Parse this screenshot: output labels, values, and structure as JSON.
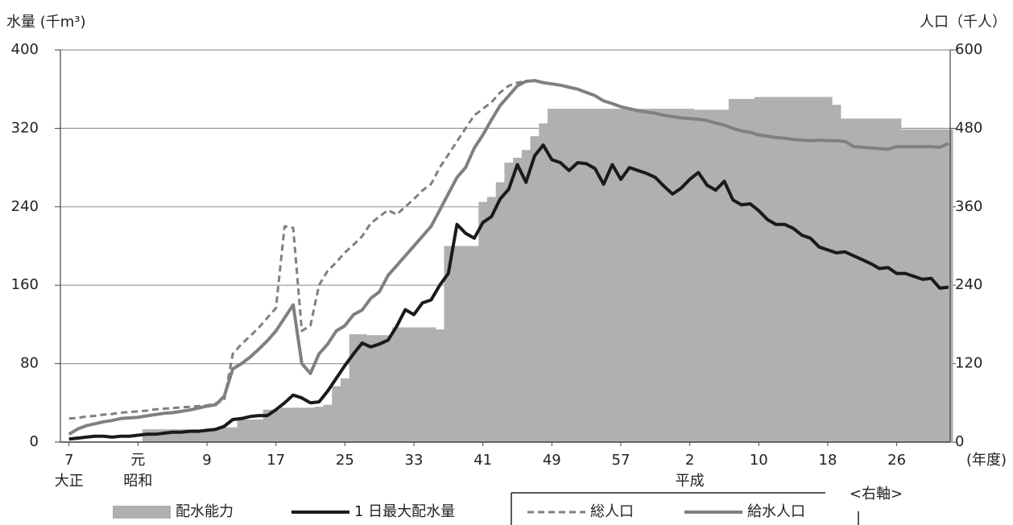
{
  "chart_data": {
    "type": "combo",
    "y_label": "水量 (千m³)",
    "y2_label": "人口（千人）",
    "x_label": "(年度)",
    "x_era_labels": [
      {
        "value": 1918,
        "label": "大正"
      },
      {
        "value": 1926,
        "label": "昭和"
      },
      {
        "value": 1990,
        "label": "平成"
      }
    ],
    "legend_note": "<右軸>",
    "xlim": [
      1917,
      2020.2
    ],
    "xticks": [
      {
        "value": 1918,
        "label": "7"
      },
      {
        "value": 1926,
        "label": "元"
      },
      {
        "value": 1934,
        "label": "9"
      },
      {
        "value": 1942,
        "label": "17"
      },
      {
        "value": 1950,
        "label": "25"
      },
      {
        "value": 1958,
        "label": "33"
      },
      {
        "value": 1966,
        "label": "41"
      },
      {
        "value": 1974,
        "label": "49"
      },
      {
        "value": 1982,
        "label": "57"
      },
      {
        "value": 1990,
        "label": "2"
      },
      {
        "value": 1998,
        "label": "10"
      },
      {
        "value": 2006,
        "label": "18"
      },
      {
        "value": 2014,
        "label": "26"
      }
    ],
    "ylim": [
      0,
      400
    ],
    "yticks": [
      0,
      80,
      160,
      240,
      320,
      400
    ],
    "y2lim": [
      0,
      600
    ],
    "y2ticks": [
      0,
      120,
      240,
      360,
      480,
      600
    ],
    "grid": true,
    "x": [
      1918,
      1919,
      1920,
      1921,
      1922,
      1923,
      1924,
      1925,
      1926,
      1927,
      1928,
      1929,
      1930,
      1931,
      1932,
      1933,
      1934,
      1935,
      1936,
      1937,
      1938,
      1939,
      1940,
      1941,
      1942,
      1943,
      1944,
      1945,
      1946,
      1947,
      1948,
      1949,
      1950,
      1951,
      1952,
      1953,
      1954,
      1955,
      1956,
      1957,
      1958,
      1959,
      1960,
      1961,
      1962,
      1963,
      1964,
      1965,
      1966,
      1967,
      1968,
      1969,
      1970,
      1971,
      1972,
      1973,
      1974,
      1975,
      1976,
      1977,
      1978,
      1979,
      1980,
      1981,
      1982,
      1983,
      1984,
      1985,
      1986,
      1987,
      1988,
      1989,
      1990,
      1991,
      1992,
      1993,
      1994,
      1995,
      1996,
      1997,
      1998,
      1999,
      2000,
      2001,
      2002,
      2003,
      2004,
      2005,
      2006,
      2007,
      2008,
      2009,
      2010,
      2011,
      2012,
      2013,
      2014,
      2015,
      2016,
      2017,
      2018,
      2019,
      2020
    ],
    "series": [
      {
        "name": "配水能力",
        "kind": "bar",
        "axis": "y",
        "color": "#b0b0b0",
        "values": [
          0,
          0,
          0,
          0,
          0,
          0,
          0,
          0,
          0,
          13,
          13,
          13,
          13,
          13,
          13,
          13,
          13,
          13,
          15,
          15,
          23,
          23,
          23,
          33,
          33,
          35,
          35,
          35,
          35,
          36,
          38,
          57,
          65,
          110,
          110,
          109,
          109,
          109,
          117,
          117,
          117,
          117,
          117,
          115,
          200,
          200,
          200,
          200,
          245,
          250,
          265,
          285,
          290,
          298,
          312,
          325,
          340,
          340,
          340,
          340,
          340,
          340,
          340,
          340,
          340,
          340,
          340,
          340,
          340,
          340,
          340,
          340,
          340,
          339,
          339,
          339,
          339,
          350,
          350,
          350,
          352,
          352,
          352,
          352,
          352,
          352,
          352,
          352,
          352,
          344,
          330,
          330,
          330,
          330,
          330,
          330,
          330,
          319,
          319,
          319,
          319,
          319,
          319
        ]
      },
      {
        "name": "1 日最大配水量",
        "kind": "line",
        "axis": "y",
        "color": "#1a1a1a",
        "dash": false,
        "values": [
          3,
          4,
          5,
          6,
          6,
          5,
          6,
          6,
          7,
          8,
          8,
          9,
          10,
          10,
          11,
          11,
          12,
          13,
          16,
          23,
          24,
          26,
          27,
          27,
          33,
          40,
          48,
          45,
          40,
          41,
          52,
          65,
          78,
          90,
          101,
          97,
          100,
          104,
          118,
          135,
          130,
          142,
          145,
          160,
          172,
          222,
          213,
          208,
          224,
          230,
          248,
          258,
          283,
          265,
          292,
          303,
          288,
          285,
          277,
          285,
          284,
          279,
          263,
          283,
          268,
          280,
          277,
          274,
          270,
          261,
          253,
          259,
          268,
          275,
          262,
          257,
          266,
          247,
          242,
          243,
          236,
          227,
          222,
          222,
          218,
          211,
          208,
          199,
          196,
          193,
          194,
          190,
          186,
          182,
          177,
          178,
          172,
          172,
          169,
          166,
          167,
          157,
          158
        ]
      },
      {
        "name": "総人口",
        "kind": "line",
        "axis": "y2",
        "color": "#808080",
        "dash": true,
        "values": [
          36,
          37,
          39,
          40,
          42,
          43,
          45,
          46,
          47,
          48,
          50,
          51,
          52,
          53,
          54,
          55,
          56,
          59,
          64,
          135,
          150,
          162,
          175,
          190,
          205,
          330,
          328,
          170,
          178,
          240,
          262,
          275,
          290,
          302,
          315,
          335,
          345,
          355,
          348,
          360,
          372,
          385,
          395,
          420,
          440,
          460,
          480,
          500,
          510,
          520,
          535,
          545,
          550,
          552,
          553,
          550,
          548,
          546,
          543,
          540,
          535,
          530,
          522,
          518,
          513,
          510,
          507,
          505,
          503,
          500,
          498,
          496,
          495,
          494,
          492,
          488,
          485,
          480,
          476,
          474,
          470,
          468,
          466,
          465,
          463,
          462,
          461,
          462,
          461,
          461,
          460,
          452,
          451,
          450,
          449,
          448,
          452,
          452,
          452,
          452,
          452,
          451,
          457
        ]
      },
      {
        "name": "給水人口",
        "kind": "line",
        "axis": "y2",
        "color": "#808080",
        "dash": false,
        "values": [
          12,
          20,
          25,
          28,
          31,
          33,
          36,
          37,
          38,
          40,
          42,
          44,
          45,
          47,
          49,
          52,
          55,
          57,
          70,
          112,
          120,
          130,
          142,
          155,
          170,
          190,
          210,
          120,
          105,
          135,
          150,
          170,
          178,
          195,
          202,
          220,
          230,
          255,
          270,
          285,
          300,
          315,
          330,
          355,
          380,
          405,
          420,
          450,
          470,
          493,
          515,
          530,
          545,
          552,
          553,
          550,
          548,
          546,
          543,
          540,
          535,
          530,
          522,
          518,
          513,
          510,
          507,
          505,
          503,
          500,
          498,
          496,
          495,
          494,
          492,
          488,
          485,
          480,
          476,
          474,
          470,
          468,
          466,
          465,
          463,
          462,
          461,
          462,
          461,
          461,
          460,
          452,
          451,
          450,
          449,
          448,
          452,
          452,
          452,
          452,
          452,
          451,
          457
        ]
      }
    ]
  }
}
